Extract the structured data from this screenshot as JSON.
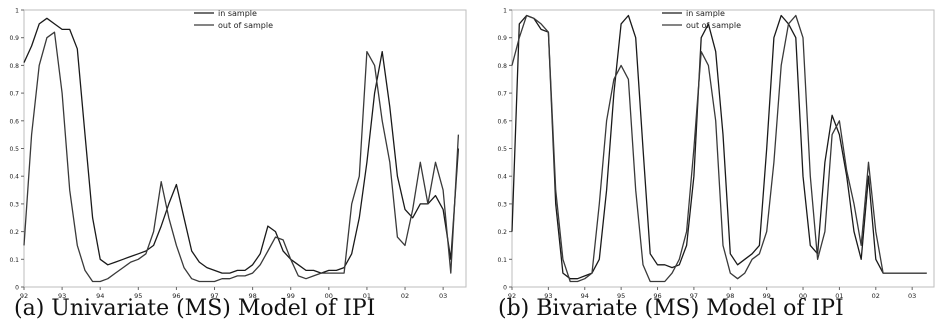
{
  "captions": [
    "(a) Univariate (MS) Model of IPI",
    "(b) Bivariate (MS) Model of IPI"
  ],
  "chart_data": [
    {
      "type": "line",
      "title": "",
      "caption": "(a) Univariate (MS) Model of IPI",
      "xlabel": "",
      "ylabel": "",
      "xlim": [
        92,
        103.6
      ],
      "ylim": [
        0,
        1
      ],
      "x_tick_labels": [
        "92",
        "93",
        "94",
        "95",
        "96",
        "97",
        "98",
        "99",
        "00",
        "01",
        "02",
        "03"
      ],
      "y_tick_values": [
        0,
        0.1,
        0.2,
        0.3,
        0.4,
        0.5,
        0.6,
        0.7,
        0.8,
        0.9,
        1
      ],
      "y_tick_labels": [
        "0",
        "0.1",
        "0.2",
        "0.3",
        "0.4",
        "0.5",
        "0.6",
        "0.7",
        "0.8",
        "0.9",
        "1"
      ],
      "grid": false,
      "legend_position": "top-center",
      "series": [
        {
          "name": "in sample",
          "x": [
            92.0,
            92.2,
            92.4,
            92.6,
            92.8,
            93.0,
            93.2,
            93.4,
            93.6,
            93.8,
            94.0,
            94.2,
            94.4,
            94.6,
            94.8,
            95.0,
            95.2,
            95.4,
            95.6,
            95.8,
            96.0,
            96.2,
            96.4,
            96.6,
            96.8,
            97.0,
            97.2,
            97.4,
            97.6,
            97.8,
            98.0,
            98.2,
            98.4,
            98.6,
            98.8,
            99.0,
            99.2,
            99.4,
            99.6,
            99.8,
            100.0,
            100.2,
            100.4,
            100.6,
            100.8,
            101.0,
            101.2,
            101.4,
            101.6,
            101.8,
            102.0,
            102.2,
            102.4,
            102.6,
            102.8,
            103.0,
            103.2,
            103.4
          ],
          "y": [
            0.81,
            0.87,
            0.95,
            0.97,
            0.95,
            0.93,
            0.93,
            0.86,
            0.55,
            0.25,
            0.1,
            0.08,
            0.09,
            0.1,
            0.11,
            0.12,
            0.13,
            0.15,
            0.22,
            0.3,
            0.37,
            0.25,
            0.13,
            0.09,
            0.07,
            0.06,
            0.05,
            0.05,
            0.06,
            0.06,
            0.08,
            0.12,
            0.22,
            0.2,
            0.13,
            0.1,
            0.08,
            0.06,
            0.06,
            0.05,
            0.06,
            0.06,
            0.07,
            0.12,
            0.25,
            0.45,
            0.7,
            0.85,
            0.65,
            0.4,
            0.28,
            0.25,
            0.3,
            0.3,
            0.33,
            0.28,
            0.1,
            0.5
          ]
        },
        {
          "name": "out of sample",
          "x": [
            92.0,
            92.2,
            92.4,
            92.6,
            92.8,
            93.0,
            93.2,
            93.4,
            93.6,
            93.8,
            94.0,
            94.2,
            94.4,
            94.6,
            94.8,
            95.0,
            95.2,
            95.4,
            95.6,
            95.8,
            96.0,
            96.2,
            96.4,
            96.6,
            96.8,
            97.0,
            97.2,
            97.4,
            97.6,
            97.8,
            98.0,
            98.2,
            98.4,
            98.6,
            98.8,
            99.0,
            99.2,
            99.4,
            99.6,
            99.8,
            100.0,
            100.2,
            100.4,
            100.6,
            100.8,
            101.0,
            101.2,
            101.4,
            101.6,
            101.8,
            102.0,
            102.2,
            102.4,
            102.6,
            102.8,
            103.0,
            103.2,
            103.4
          ],
          "y": [
            0.15,
            0.55,
            0.8,
            0.9,
            0.92,
            0.7,
            0.35,
            0.15,
            0.06,
            0.02,
            0.02,
            0.03,
            0.05,
            0.07,
            0.09,
            0.1,
            0.12,
            0.2,
            0.38,
            0.25,
            0.15,
            0.07,
            0.03,
            0.02,
            0.02,
            0.02,
            0.03,
            0.03,
            0.04,
            0.04,
            0.05,
            0.08,
            0.13,
            0.18,
            0.17,
            0.1,
            0.04,
            0.03,
            0.04,
            0.05,
            0.05,
            0.05,
            0.05,
            0.3,
            0.4,
            0.85,
            0.8,
            0.6,
            0.45,
            0.18,
            0.15,
            0.28,
            0.45,
            0.3,
            0.45,
            0.35,
            0.05,
            0.55
          ]
        }
      ]
    },
    {
      "type": "line",
      "title": "",
      "caption": "(b) Bivariate (MS) Model of IPI",
      "xlabel": "",
      "ylabel": "",
      "xlim": [
        92,
        103.6
      ],
      "ylim": [
        0,
        1
      ],
      "x_tick_labels": [
        "92",
        "93",
        "94",
        "95",
        "96",
        "97",
        "98",
        "99",
        "00",
        "01",
        "02",
        "03"
      ],
      "y_tick_values": [
        0,
        0.1,
        0.2,
        0.3,
        0.4,
        0.5,
        0.6,
        0.7,
        0.8,
        0.9,
        1
      ],
      "y_tick_labels": [
        "0",
        "0.1",
        "0.2",
        "0.3",
        "0.4",
        "0.5",
        "0.6",
        "0.7",
        "0.8",
        "0.9",
        "1"
      ],
      "grid": false,
      "legend_position": "top-center",
      "series": [
        {
          "name": "in sample",
          "x": [
            92.0,
            92.2,
            92.4,
            92.6,
            92.8,
            93.0,
            93.2,
            93.4,
            93.6,
            93.8,
            94.0,
            94.2,
            94.4,
            94.6,
            94.8,
            95.0,
            95.2,
            95.4,
            95.6,
            95.8,
            96.0,
            96.2,
            96.4,
            96.6,
            96.8,
            97.0,
            97.2,
            97.4,
            97.6,
            97.8,
            98.0,
            98.2,
            98.4,
            98.6,
            98.8,
            99.0,
            99.2,
            99.4,
            99.6,
            99.8,
            100.0,
            100.2,
            100.4,
            100.6,
            100.8,
            101.0,
            101.2,
            101.4,
            101.6,
            101.8,
            102.0,
            102.2,
            102.4,
            102.6,
            102.8,
            103.0,
            103.2,
            103.4
          ],
          "y": [
            0.2,
            0.95,
            0.98,
            0.97,
            0.93,
            0.92,
            0.3,
            0.05,
            0.03,
            0.03,
            0.04,
            0.05,
            0.1,
            0.35,
            0.7,
            0.95,
            0.98,
            0.9,
            0.5,
            0.12,
            0.08,
            0.08,
            0.07,
            0.08,
            0.15,
            0.4,
            0.9,
            0.95,
            0.85,
            0.55,
            0.12,
            0.08,
            0.1,
            0.12,
            0.15,
            0.5,
            0.9,
            0.98,
            0.95,
            0.9,
            0.4,
            0.15,
            0.12,
            0.45,
            0.62,
            0.55,
            0.4,
            0.2,
            0.1,
            0.4,
            0.1,
            0.05,
            0.05,
            0.05,
            0.05,
            0.05,
            0.05,
            0.05
          ]
        },
        {
          "name": "out of sample",
          "x": [
            92.0,
            92.2,
            92.4,
            92.6,
            92.8,
            93.0,
            93.2,
            93.4,
            93.6,
            93.8,
            94.0,
            94.2,
            94.4,
            94.6,
            94.8,
            95.0,
            95.2,
            95.4,
            95.6,
            95.8,
            96.0,
            96.2,
            96.4,
            96.6,
            96.8,
            97.0,
            97.2,
            97.4,
            97.6,
            97.8,
            98.0,
            98.2,
            98.4,
            98.6,
            98.8,
            99.0,
            99.2,
            99.4,
            99.6,
            99.8,
            100.0,
            100.2,
            100.4,
            100.6,
            100.8,
            101.0,
            101.2,
            101.4,
            101.6,
            101.8,
            102.0,
            102.2,
            102.4,
            102.6,
            102.8,
            103.0,
            103.2,
            103.4
          ],
          "y": [
            0.8,
            0.9,
            0.98,
            0.97,
            0.95,
            0.92,
            0.35,
            0.1,
            0.02,
            0.02,
            0.03,
            0.05,
            0.3,
            0.6,
            0.75,
            0.8,
            0.75,
            0.35,
            0.08,
            0.02,
            0.02,
            0.02,
            0.05,
            0.1,
            0.2,
            0.5,
            0.85,
            0.8,
            0.6,
            0.15,
            0.05,
            0.03,
            0.05,
            0.1,
            0.12,
            0.2,
            0.45,
            0.8,
            0.95,
            0.98,
            0.9,
            0.4,
            0.1,
            0.2,
            0.55,
            0.6,
            0.42,
            0.3,
            0.15,
            0.45,
            0.2,
            0.05,
            0.05,
            0.05,
            0.05,
            0.05,
            0.05,
            0.05
          ]
        }
      ]
    }
  ]
}
